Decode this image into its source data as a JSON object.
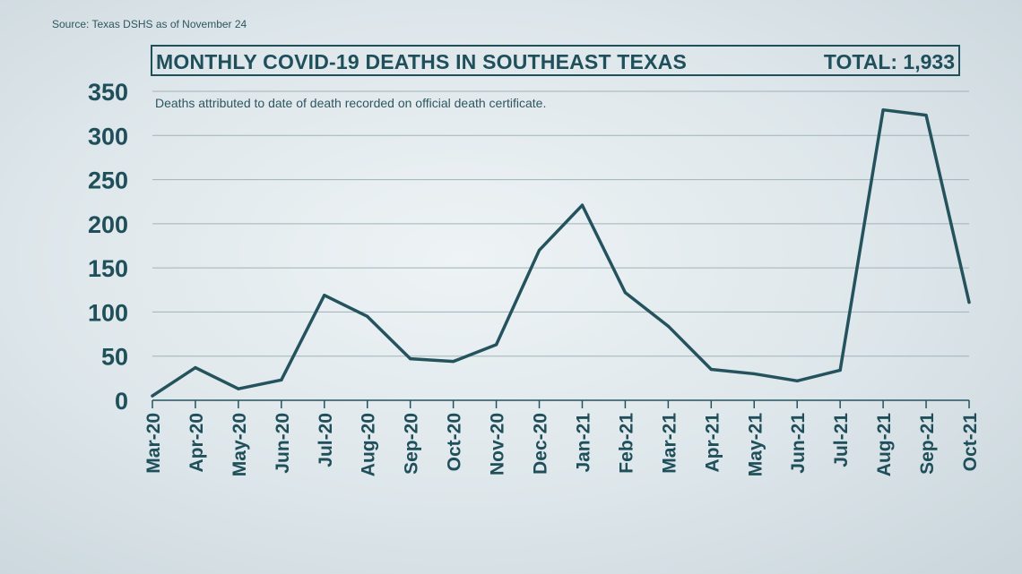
{
  "source": "Source: Texas DSHS as of November 24",
  "title": "MONTHLY COVID-19 DEATHS IN SOUTHEAST TEXAS",
  "total": "TOTAL: 1,933",
  "subtitle": "Deaths attributed to date of death recorded on official death certificate.",
  "colors": {
    "line": "#24535e",
    "text": "#1f4f5b",
    "grid": "#9fb3ba"
  },
  "chart_data": {
    "type": "line",
    "title": "MONTHLY COVID-19 DEATHS IN SOUTHEAST TEXAS",
    "xlabel": "",
    "ylabel": "",
    "ylim": [
      0,
      350
    ],
    "yticks": [
      0,
      50,
      100,
      150,
      200,
      250,
      300,
      350
    ],
    "grid": true,
    "categories": [
      "Mar-20",
      "Apr-20",
      "May-20",
      "Jun-20",
      "Jul-20",
      "Aug-20",
      "Sep-20",
      "Oct-20",
      "Nov-20",
      "Dec-20",
      "Jan-21",
      "Feb-21",
      "Mar-21",
      "Apr-21",
      "May-21",
      "Jun-21",
      "Jul-21",
      "Aug-21",
      "Sep-21",
      "Oct-21"
    ],
    "series": [
      {
        "values": [
          5,
          37,
          13,
          23,
          119,
          95,
          47,
          44,
          63,
          170,
          221,
          122,
          84,
          35,
          30,
          22,
          34,
          329,
          323,
          111
        ]
      }
    ]
  }
}
